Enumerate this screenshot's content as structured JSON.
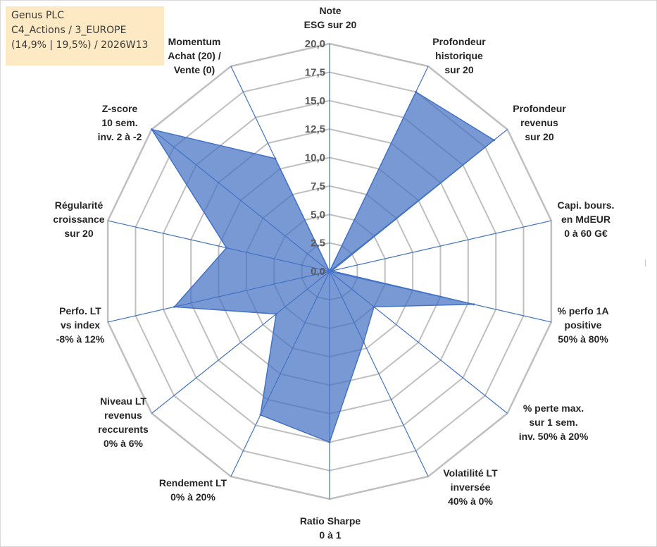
{
  "title_box": {
    "line1": "Genus PLC",
    "line2": "C4_Actions / 3_EUROPE",
    "line3": "(14,9% | 19,5%) / 2026W13"
  },
  "chart_data": {
    "type": "radar",
    "title": "Genus PLC",
    "rmin": 0,
    "rmax": 20,
    "ticks": [
      "0,0",
      "2,5",
      "5,0",
      "7,5",
      "10,0",
      "12,5",
      "15,0",
      "17,5",
      "20,0"
    ],
    "tick_values": [
      0,
      2.5,
      5,
      7.5,
      10,
      12.5,
      15,
      17.5,
      20
    ],
    "gridlines": true,
    "categories": [
      [
        "Note",
        "ESG sur 20"
      ],
      [
        "Profondeur",
        "historique",
        "sur 20"
      ],
      [
        "Profondeur",
        "revenus",
        "sur 20"
      ],
      [
        "Capi. bours.",
        "en MdEUR",
        "0 à 60 G€"
      ],
      [
        "% perfo 1A",
        "positive",
        "50% à 80%"
      ],
      [
        "% perte max.",
        "sur 1 sem.",
        "inv. 50% à 20%"
      ],
      [
        "Volatilité LT",
        "inversée",
        "40% à 0%"
      ],
      [
        "Ratio Sharpe",
        "0 à 1"
      ],
      [
        "Rendement LT",
        "0% à 20%"
      ],
      [
        "Niveau LT",
        "revenus",
        "reccurents",
        "0% à 6%"
      ],
      [
        "Perfo. LT",
        "vs index",
        "-8% à 12%"
      ],
      [
        "Régularité",
        "croissance",
        "sur 20"
      ],
      [
        "Z-score",
        "10 sem.",
        "inv. 2 à -2"
      ],
      [
        "Momentum",
        "Achat (20) /",
        "Vente (0)"
      ]
    ],
    "series": [
      {
        "name": "Genus PLC",
        "color": "#4472c4",
        "values": [
          0,
          17.5,
          18.5,
          0.2,
          13.0,
          5.0,
          6.9,
          15.0,
          14.0,
          6.0,
          14.0,
          9.3,
          20.0,
          11.0
        ]
      }
    ],
    "spoke_color": "#4472c4",
    "grid_color": "#bfbfbf",
    "fill_color": "#4472c4"
  }
}
